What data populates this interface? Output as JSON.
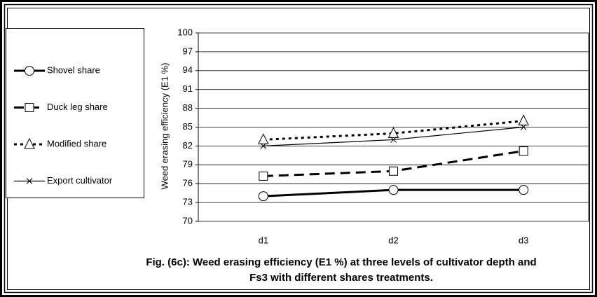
{
  "chart_data": {
    "type": "line",
    "title": [
      "Fig. (6c): Weed erasing efficiency (E1 %)  at three levels of cultivator depth and",
      "Fs3 with different shares treatments."
    ],
    "ylabel": "Weed erasing efficiency  (E1 %)",
    "categories": [
      "d1",
      "d2",
      "d3"
    ],
    "series": [
      {
        "name": "Shovel share",
        "color": "#000000",
        "width": 3,
        "dash": "none",
        "marker": "circle",
        "values": [
          74,
          75,
          75
        ]
      },
      {
        "name": "Duck leg share",
        "color": "#000000",
        "width": 3,
        "dash": "14 8",
        "marker": "square",
        "values": [
          77.2,
          78,
          81.2
        ]
      },
      {
        "name": "Modified share",
        "color": "#000000",
        "width": 3,
        "dash": "4 5",
        "marker": "triangle",
        "values": [
          83,
          84,
          86
        ]
      },
      {
        "name": "Export cultivator",
        "color": "#000000",
        "width": 1.2,
        "dash": "none",
        "marker": "x",
        "values": [
          82,
          83,
          85
        ]
      }
    ],
    "ylim": [
      70,
      100
    ],
    "yticks": [
      70,
      73,
      76,
      79,
      82,
      85,
      88,
      91,
      94,
      97,
      100
    ],
    "grid": true
  }
}
